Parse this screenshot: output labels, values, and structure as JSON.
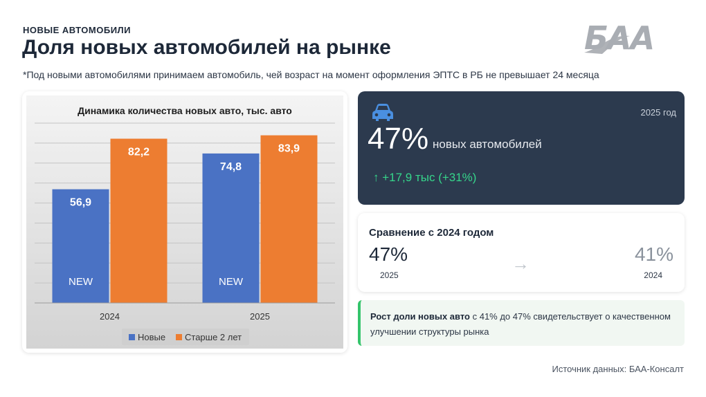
{
  "header": {
    "section_label": "НОВЫЕ АВТОМОБИЛИ",
    "title": "Доля новых автомобилей на рынке",
    "footnote": "*Под новыми автомобилями принимаем автомобиль, чей возраст на момент оформления ЭПТС в РБ не превышает 24 месяца"
  },
  "logo": {
    "text": "БАА"
  },
  "chart_data": {
    "type": "bar",
    "title": "Динамика количества новых авто, тыс. авто",
    "categories": [
      "2024",
      "2025"
    ],
    "series": [
      {
        "name": "Новые",
        "values": [
          56.9,
          74.8
        ],
        "labels": [
          "56,9",
          "74,8"
        ],
        "inner_label": "NEW",
        "color": "#4a72c4"
      },
      {
        "name": "Старше 2 лет",
        "values": [
          82.2,
          83.9
        ],
        "labels": [
          "82,2",
          "83,9"
        ],
        "color": "#ed7d31"
      }
    ],
    "ylim": [
      0,
      90
    ],
    "grid": true,
    "legend": "bottom"
  },
  "kpi": {
    "icon": "car-icon",
    "year": "2025 год",
    "value": "47%",
    "label": "новых автомобилей",
    "delta": "↑  +17,9 тыс (+31%)",
    "accent": "#2c3a4e",
    "delta_color": "#36d68b"
  },
  "comparison": {
    "title": "Сравнение с 2024 годом",
    "current_value": "47%",
    "current_year": "2025",
    "arrow": "→",
    "previous_value": "41%",
    "previous_year": "2024"
  },
  "note": {
    "bold": "Рост доли новых авто",
    "text": " с 41% до 47% свидетельствует о качественном улучшении структуры рынка"
  },
  "source": "Источник данных: БАА-Консалт"
}
